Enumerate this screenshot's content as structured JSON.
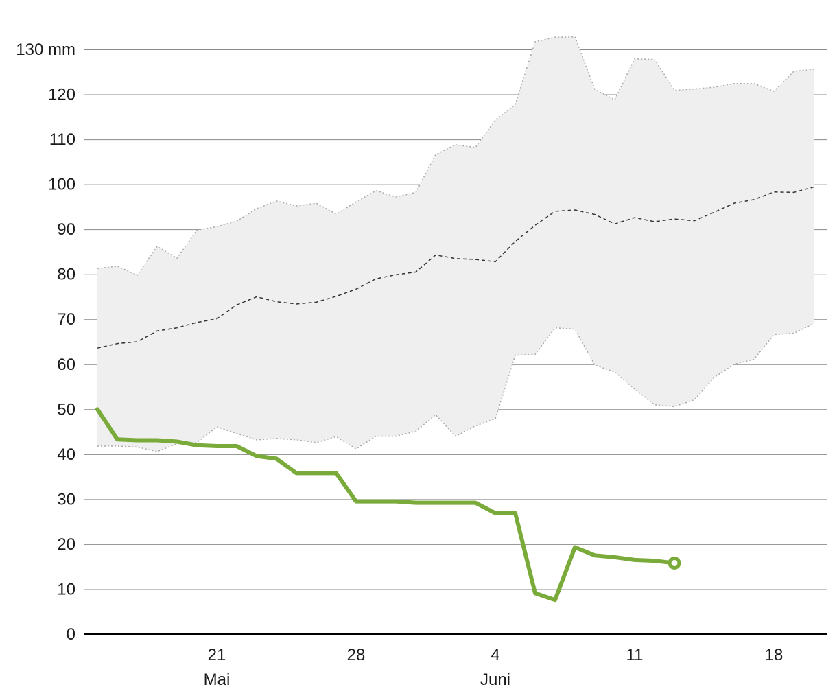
{
  "chart_data": {
    "type": "line",
    "title": "",
    "xlabel": "",
    "ylabel": "",
    "y_unit": "mm",
    "ylim": [
      0,
      130
    ],
    "y_ticks": [
      0,
      10,
      20,
      30,
      40,
      50,
      60,
      70,
      80,
      90,
      100,
      110,
      120,
      130
    ],
    "y_tick_labels": [
      "0",
      "10",
      "20",
      "30",
      "40",
      "50",
      "60",
      "70",
      "80",
      "90",
      "100",
      "110",
      "120",
      "130 mm"
    ],
    "grid": true,
    "x_type": "date",
    "x_range": [
      "2024-05-15",
      "2024-06-21"
    ],
    "x_ticks": [
      {
        "date": "2024-05-21",
        "label": "21",
        "month": "Mai"
      },
      {
        "date": "2024-05-28",
        "label": "28",
        "month": ""
      },
      {
        "date": "2024-06-04",
        "label": "4",
        "month": "Juni"
      },
      {
        "date": "2024-06-11",
        "label": "11",
        "month": ""
      },
      {
        "date": "2024-06-18",
        "label": "18",
        "month": ""
      }
    ],
    "band": {
      "x": [
        "2024-05-15",
        "2024-05-16",
        "2024-05-17",
        "2024-05-18",
        "2024-05-19",
        "2024-05-20",
        "2024-05-21",
        "2024-05-22",
        "2024-05-23",
        "2024-05-24",
        "2024-05-25",
        "2024-05-26",
        "2024-05-27",
        "2024-05-28",
        "2024-05-29",
        "2024-05-30",
        "2024-05-31",
        "2024-06-01",
        "2024-06-02",
        "2024-06-03",
        "2024-06-04",
        "2024-06-05",
        "2024-06-06",
        "2024-06-07",
        "2024-06-08",
        "2024-06-09",
        "2024-06-10",
        "2024-06-11",
        "2024-06-12",
        "2024-06-13",
        "2024-06-14",
        "2024-06-15",
        "2024-06-16",
        "2024-06-17",
        "2024-06-18",
        "2024-06-19",
        "2024-06-20"
      ],
      "upper": [
        81.3,
        81.8,
        79.8,
        86.2,
        83.6,
        89.8,
        90.6,
        91.8,
        94.6,
        96.3,
        95.2,
        95.8,
        93.4,
        96.1,
        98.6,
        97.2,
        98.2,
        106.6,
        108.8,
        108.2,
        114.3,
        117.7,
        131.7,
        132.7,
        132.8,
        121.1,
        118.8,
        127.9,
        127.8,
        120.9,
        121.2,
        121.6,
        122.4,
        122.4,
        120.7,
        125.1,
        125.6
      ],
      "median": [
        63.6,
        64.6,
        65.0,
        67.4,
        68.1,
        69.3,
        70.1,
        73.2,
        75.0,
        73.9,
        73.4,
        73.8,
        75.1,
        76.7,
        79.0,
        79.9,
        80.5,
        84.3,
        83.5,
        83.3,
        82.8,
        87.3,
        90.9,
        94.0,
        94.3,
        93.3,
        91.2,
        92.6,
        91.7,
        92.3,
        91.9,
        93.8,
        95.8,
        96.6,
        98.3,
        98.2,
        99.4
      ],
      "lower": [
        41.8,
        41.8,
        41.6,
        40.6,
        42.3,
        42.6,
        46.1,
        44.6,
        43.2,
        43.5,
        43.2,
        42.6,
        43.9,
        41.2,
        44.0,
        44.0,
        45.1,
        48.8,
        44.0,
        46.3,
        47.9,
        62.0,
        62.2,
        68.1,
        67.8,
        59.8,
        58.3,
        54.5,
        51.0,
        50.6,
        52.1,
        57.1,
        60.0,
        61.1,
        66.6,
        66.9,
        69.0
      ]
    },
    "series": [
      {
        "x": [
          "2024-05-15",
          "2024-05-16",
          "2024-05-17",
          "2024-05-18",
          "2024-05-19",
          "2024-05-20",
          "2024-05-21",
          "2024-05-22",
          "2024-05-23",
          "2024-05-24",
          "2024-05-25",
          "2024-05-26",
          "2024-05-27",
          "2024-05-28",
          "2024-05-29",
          "2024-05-30",
          "2024-05-31",
          "2024-06-01",
          "2024-06-02",
          "2024-06-03",
          "2024-06-04",
          "2024-06-05",
          "2024-06-06",
          "2024-06-07",
          "2024-06-08",
          "2024-06-09",
          "2024-06-10",
          "2024-06-11",
          "2024-06-12",
          "2024-06-13"
        ],
        "values": [
          50.0,
          43.3,
          43.1,
          43.1,
          42.8,
          42.0,
          41.8,
          41.8,
          39.6,
          39.0,
          35.8,
          35.8,
          35.8,
          29.5,
          29.5,
          29.5,
          29.2,
          29.2,
          29.2,
          29.2,
          26.9,
          26.9,
          9.1,
          7.6,
          19.3,
          17.5,
          17.1,
          16.5,
          16.3,
          15.8
        ],
        "color": "#7aab3a"
      }
    ]
  }
}
